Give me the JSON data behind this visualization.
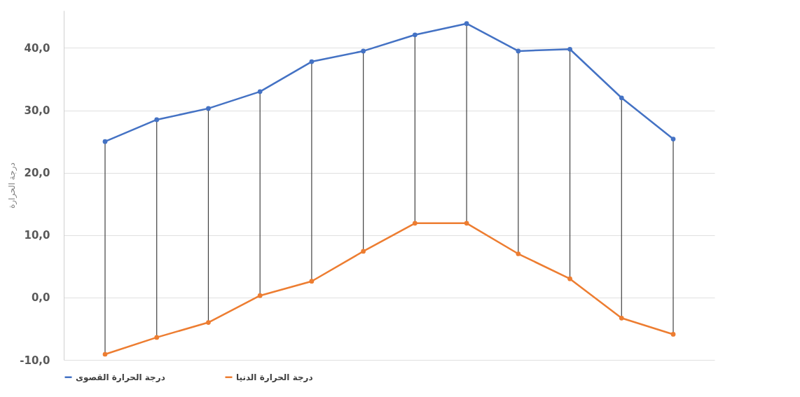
{
  "chart_data": {
    "type": "line",
    "ylabel": "درجة الحرارة",
    "categories": [
      null,
      null,
      null,
      null,
      null,
      null,
      null,
      null,
      null,
      null,
      null,
      null
    ],
    "series": [
      {
        "name": "درجة الحرارة القصوى",
        "color": "#4472c4",
        "values": [
          25.0,
          28.5,
          30.3,
          33.0,
          37.8,
          39.5,
          42.1,
          43.9,
          39.5,
          39.8,
          32.0,
          25.4
        ]
      },
      {
        "name": "درجة الحرارة الدنيا",
        "color": "#ed7d31",
        "values": [
          -9.1,
          -6.4,
          -4.0,
          0.3,
          2.6,
          7.4,
          11.9,
          11.9,
          7.0,
          3.0,
          -3.3,
          -5.9
        ]
      }
    ],
    "ylim": [
      -10,
      46
    ],
    "yticks": [
      {
        "value": -10,
        "label": "-10,0"
      },
      {
        "value": 0,
        "label": "0,0"
      },
      {
        "value": 10,
        "label": "10,0"
      },
      {
        "value": 20,
        "label": "20,0"
      },
      {
        "value": 30,
        "label": "30,0"
      },
      {
        "value": 40,
        "label": "40,0"
      }
    ],
    "grid": "y",
    "legend": "bottom",
    "tick_labels": "y",
    "marker": "circle",
    "line_style": "solid"
  }
}
